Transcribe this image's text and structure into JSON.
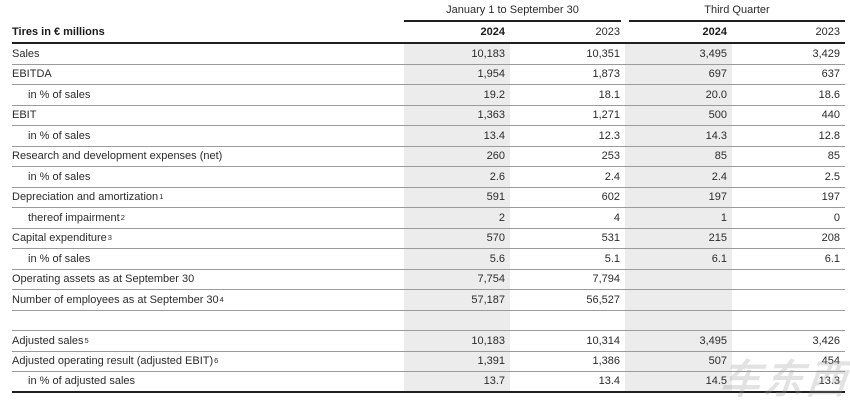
{
  "table": {
    "corner_label": "Tires in € millions",
    "group_headers": [
      {
        "label": "January 1 to September 30"
      },
      {
        "label": "Third Quarter"
      }
    ],
    "year_headers": [
      {
        "label": "2024",
        "bold": true
      },
      {
        "label": "2023",
        "bold": false
      },
      {
        "label": "2024",
        "bold": true
      },
      {
        "label": "2023",
        "bold": false
      }
    ],
    "rows": [
      {
        "label": "Sales",
        "sup": "",
        "indent": false,
        "spacer": false,
        "values": [
          "10,183",
          "10,351",
          "3,495",
          "3,429"
        ]
      },
      {
        "label": "EBITDA",
        "sup": "",
        "indent": false,
        "spacer": false,
        "values": [
          "1,954",
          "1,873",
          "697",
          "637"
        ]
      },
      {
        "label": "in % of sales",
        "sup": "",
        "indent": true,
        "spacer": false,
        "values": [
          "19.2",
          "18.1",
          "20.0",
          "18.6"
        ]
      },
      {
        "label": "EBIT",
        "sup": "",
        "indent": false,
        "spacer": false,
        "values": [
          "1,363",
          "1,271",
          "500",
          "440"
        ]
      },
      {
        "label": "in % of sales",
        "sup": "",
        "indent": true,
        "spacer": false,
        "values": [
          "13.4",
          "12.3",
          "14.3",
          "12.8"
        ]
      },
      {
        "label": "Research and development expenses (net)",
        "sup": "",
        "indent": false,
        "spacer": false,
        "values": [
          "260",
          "253",
          "85",
          "85"
        ]
      },
      {
        "label": "in % of sales",
        "sup": "",
        "indent": true,
        "spacer": false,
        "values": [
          "2.6",
          "2.4",
          "2.4",
          "2.5"
        ]
      },
      {
        "label": "Depreciation and amortization",
        "sup": "1",
        "indent": false,
        "spacer": false,
        "values": [
          "591",
          "602",
          "197",
          "197"
        ]
      },
      {
        "label": "thereof impairment",
        "sup": "2",
        "indent": true,
        "spacer": false,
        "values": [
          "2",
          "4",
          "1",
          "0"
        ]
      },
      {
        "label": "Capital expenditure",
        "sup": "3",
        "indent": false,
        "spacer": false,
        "values": [
          "570",
          "531",
          "215",
          "208"
        ]
      },
      {
        "label": "in % of sales",
        "sup": "",
        "indent": true,
        "spacer": false,
        "values": [
          "5.6",
          "5.1",
          "6.1",
          "6.1"
        ]
      },
      {
        "label": "Operating assets as at September 30",
        "sup": "",
        "indent": false,
        "spacer": false,
        "values": [
          "7,754",
          "7,794",
          "",
          ""
        ]
      },
      {
        "label": "Number of employees as at September 30",
        "sup": "4",
        "indent": false,
        "spacer": false,
        "values": [
          "57,187",
          "56,527",
          "",
          ""
        ]
      },
      {
        "label": "",
        "sup": "",
        "indent": false,
        "spacer": true,
        "values": [
          "",
          "",
          "",
          ""
        ]
      },
      {
        "label": "Adjusted sales",
        "sup": "5",
        "indent": false,
        "spacer": false,
        "values": [
          "10,183",
          "10,314",
          "3,495",
          "3,426"
        ]
      },
      {
        "label": "Adjusted operating result (adjusted EBIT)",
        "sup": "6",
        "indent": false,
        "spacer": false,
        "values": [
          "1,391",
          "1,386",
          "507",
          "454"
        ]
      },
      {
        "label": "in % of adjusted sales",
        "sup": "",
        "indent": true,
        "spacer": false,
        "values": [
          "13.7",
          "13.4",
          "14.5",
          "13.3"
        ]
      }
    ]
  },
  "watermark": {
    "text": "车东西"
  },
  "colors": {
    "band": "#ececec",
    "row_line": "#9b9b9b",
    "strong_line": "#1f1f1f",
    "text": "#2b2b2b"
  }
}
